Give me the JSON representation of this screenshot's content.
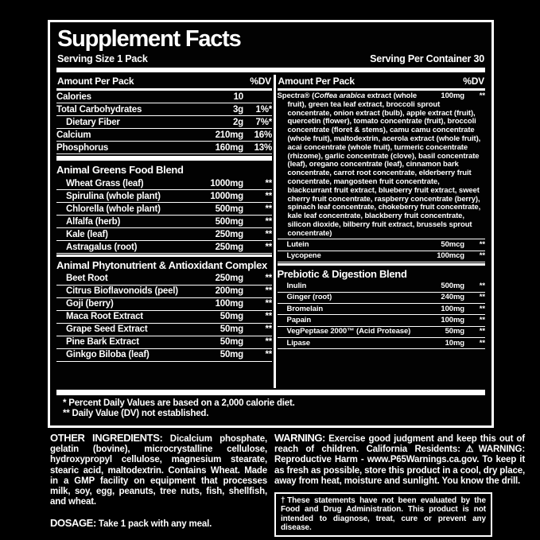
{
  "colors": {
    "background": "#000000",
    "text": "#ffffff"
  },
  "supplement_facts": {
    "title": "Supplement Facts",
    "serving_size": "Serving Size 1 Pack",
    "servings_per_container": "Serving Per Container 30",
    "amount_header": "Amount Per Pack",
    "dv_header": "%DV",
    "left_rows": [
      {
        "kind": "item",
        "name": "Calories",
        "amount": "10",
        "dv": ""
      },
      {
        "kind": "item",
        "name": "Total Carbohydrates",
        "amount": "3g",
        "dv": "1%*"
      },
      {
        "kind": "item",
        "name": "Dietary Fiber",
        "amount": "2g",
        "dv": "7%*",
        "indent": true
      },
      {
        "kind": "item",
        "name": "Calcium",
        "amount": "210mg",
        "dv": "16%"
      },
      {
        "kind": "item",
        "name": "Phosphorus",
        "amount": "160mg",
        "dv": "13%"
      },
      {
        "kind": "section",
        "title": "Animal Greens Food Blend",
        "bar": "thick"
      },
      {
        "kind": "item",
        "name": "Wheat Grass (leaf)",
        "amount": "1000mg",
        "dv": "**",
        "indent": true
      },
      {
        "kind": "item",
        "name": "Spirulina (whole plant)",
        "amount": "1000mg",
        "dv": "**",
        "indent": true
      },
      {
        "kind": "item",
        "name": "Chlorella (whole plant)",
        "amount": "500mg",
        "dv": "**",
        "indent": true
      },
      {
        "kind": "item",
        "name": "Alfalfa (herb)",
        "amount": "500mg",
        "dv": "**",
        "indent": true
      },
      {
        "kind": "item",
        "name": "Kale (leaf)",
        "amount": "250mg",
        "dv": "**",
        "indent": true
      },
      {
        "kind": "item",
        "name": "Astragalus (root)",
        "amount": "250mg",
        "dv": "**",
        "indent": true
      },
      {
        "kind": "section",
        "title": "Animal Phytonutrient & Antioxidant Complex",
        "bar": "med"
      },
      {
        "kind": "item",
        "name": "Beet Root",
        "amount": "250mg",
        "dv": "**",
        "indent": true
      },
      {
        "kind": "item",
        "name": "Citrus Bioflavonoids (peel)",
        "amount": "200mg",
        "dv": "**",
        "indent": true
      },
      {
        "kind": "item",
        "name": "Goji (berry)",
        "amount": "100mg",
        "dv": "**",
        "indent": true
      },
      {
        "kind": "item",
        "name": "Maca Root Extract",
        "amount": "50mg",
        "dv": "**",
        "indent": true
      },
      {
        "kind": "item",
        "name": "Grape Seed Extract",
        "amount": "50mg",
        "dv": "**",
        "indent": true
      },
      {
        "kind": "item",
        "name": "Pine Bark Extract",
        "amount": "50mg",
        "dv": "**",
        "indent": true
      },
      {
        "kind": "item",
        "name": "Ginkgo Biloba (leaf)",
        "amount": "50mg",
        "dv": "**",
        "indent": true
      }
    ],
    "right_rows": [
      {
        "kind": "item",
        "parts": [
          {
            "t": "Spectra® ("
          },
          {
            "t": "Coffea arabica",
            "i": true
          },
          {
            "t": " extract (whole fruit), green tea leaf extract, broccoli sprout concentrate, onion extract (bulb), apple extract (fruit), quercetin (flower), tomato concentrate (fruit), broccoli concentrate (floret & stems), camu camu concentrate (whole fruit), maltodextrin, acerola extract (whole fruit), acai concentrate (whole fruit), turmeric concentrate (rhizome), garlic concentrate (clove), basil concentrate (leaf), oregano concentrate (leaf), cinnamon bark concentrate, carrot root concentrate, elderberry fruit concentrate, mangosteen fruit concentrate, blackcurrant fruit extract, blueberry fruit extract, sweet cherry fruit concentrate, raspberry concentrate (berry), spinach leaf concentrate, chokeberry fruit concentrate, kale leaf concentrate, blackberry fruit concentrate, silicon dioxide, bilberry fruit extract, brussels sprout concentrate)"
          }
        ],
        "amount": "100mg",
        "dv": "**",
        "hang": true
      },
      {
        "kind": "item",
        "name": "Lutein",
        "amount": "50mcg",
        "dv": "**",
        "indent": true
      },
      {
        "kind": "item",
        "name": "Lycopene",
        "amount": "100mcg",
        "dv": "**",
        "indent": true
      },
      {
        "kind": "section",
        "title": "Prebiotic & Digestion Blend",
        "bar": "med"
      },
      {
        "kind": "item",
        "name": "Inulin",
        "amount": "500mg",
        "dv": "**",
        "indent": true
      },
      {
        "kind": "item",
        "name": "Ginger (root)",
        "amount": "240mg",
        "dv": "**",
        "indent": true
      },
      {
        "kind": "item",
        "name": "Bromelain",
        "amount": "100mg",
        "dv": "**",
        "indent": true
      },
      {
        "kind": "item",
        "name": "Papain",
        "amount": "100mg",
        "dv": "**",
        "indent": true
      },
      {
        "kind": "item",
        "name": "VegPeptase 2000™ (Acid Protease)",
        "amount": "50mg",
        "dv": "**",
        "indent": true
      },
      {
        "kind": "item",
        "name": "Lipase",
        "amount": "10mg",
        "dv": "**",
        "indent": true
      }
    ],
    "footnote_dv": "* Percent Daily Values are based on a 2,000 calorie diet.",
    "footnote_not_established": "** Daily Value (DV) not established."
  },
  "other_ingredients": {
    "label": "OTHER INGREDIENTS:",
    "text": " Dicalcium phosphate, gelatin (bovine), microcrystalline cellulose, hydroxypropyl cellulose, magnesium stearate, stearic acid, maltodextrin. Contains Wheat. Made in a GMP facility on equipment that processes milk, soy, egg, peanuts, tree nuts, fish, shellfish, and wheat."
  },
  "dosage": {
    "label": "DOSAGE:",
    "text": " Take 1 pack with any meal."
  },
  "warning": {
    "label": "WARNING:",
    "text_before": " Exercise good judgment and keep this out of reach of children. California Residents:",
    "prop65_label": "⚠WARNING:",
    "text_after": " Reproductive Harm - www.P65Warnings.ca.gov. To keep it as fresh as possible, store this product in a cool, dry place, away from heat, moisture and sunlight. You know the drill."
  },
  "disclaimer": "†These statements have not been evaluated by the Food and Drug Administration. This product is not intended to diagnose, treat, cure or prevent any disease."
}
